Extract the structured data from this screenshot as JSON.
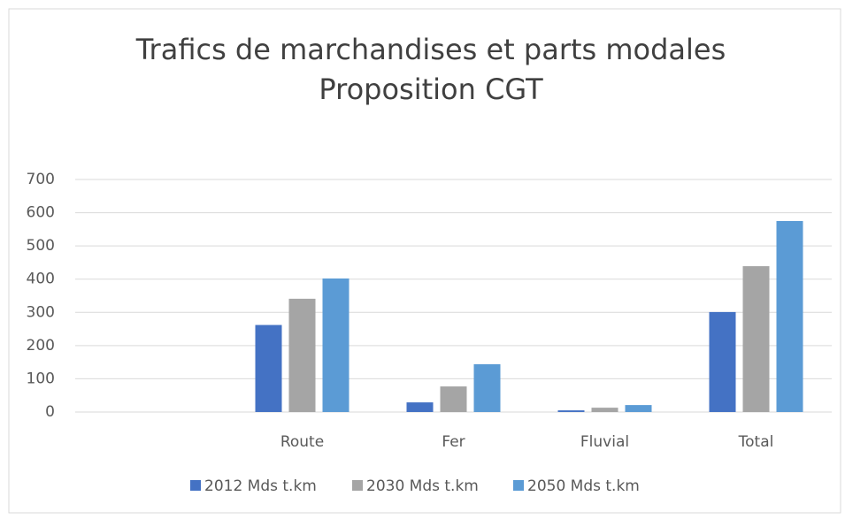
{
  "chart_data": {
    "type": "bar",
    "title": [
      "Trafics de marchandises et parts modales",
      "Proposition CGT"
    ],
    "categories": [
      null,
      "Route",
      "Fer",
      "Fluvial",
      "Total"
    ],
    "series": [
      {
        "name": "2012 Mds t.km",
        "color": "#4472c4",
        "values": [
          null,
          262,
          29,
          5,
          301
        ]
      },
      {
        "name": "2030 Mds t.km",
        "color": "#a5a5a5",
        "values": [
          null,
          341,
          77,
          13,
          439
        ]
      },
      {
        "name": "2050 Mds t.km",
        "color": "#5b9bd5",
        "values": [
          null,
          402,
          144,
          21,
          575
        ]
      }
    ],
    "ylim": [
      0,
      700
    ],
    "yticks": [
      0,
      100,
      200,
      300,
      400,
      500,
      600,
      700
    ],
    "grid": true,
    "legend": "bottom"
  }
}
